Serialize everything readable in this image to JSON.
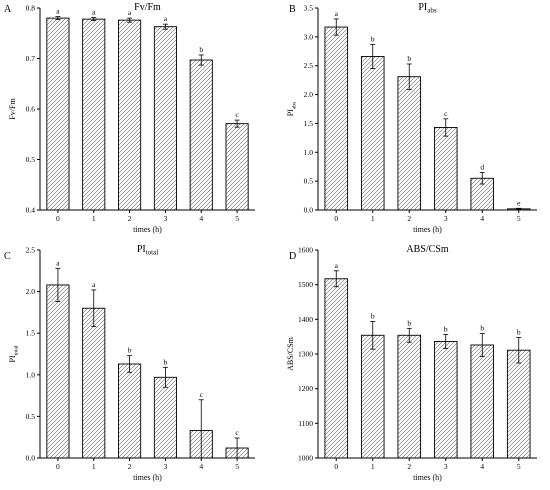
{
  "chart_data": [
    {
      "type": "bar",
      "panel": "A",
      "title": "Fv/Fm",
      "title_sub": "",
      "xlabel": "times (h)",
      "ylabel": "Fv/Fm",
      "ylabel_sub": "",
      "categories": [
        "0",
        "1",
        "2",
        "3",
        "4",
        "5"
      ],
      "values": [
        0.78,
        0.778,
        0.776,
        0.763,
        0.697,
        0.571
      ],
      "errors": [
        0.003,
        0.003,
        0.004,
        0.005,
        0.01,
        0.007
      ],
      "letters": [
        "a",
        "a",
        "a",
        "a",
        "b",
        "c"
      ],
      "ylim": [
        0.4,
        0.8
      ],
      "yticks": [
        "0.4",
        "0.5",
        "0.6",
        "0.7",
        "0.8"
      ],
      "fill": "diagonal-hatch"
    },
    {
      "type": "bar",
      "panel": "B",
      "title": "PI",
      "title_sub": "abs",
      "xlabel": "times (h)",
      "ylabel": "PI",
      "ylabel_sub": "abs",
      "categories": [
        "0",
        "1",
        "2",
        "3",
        "4",
        "5"
      ],
      "values": [
        3.17,
        2.66,
        2.31,
        1.43,
        0.55,
        0.02
      ],
      "errors": [
        0.14,
        0.21,
        0.22,
        0.15,
        0.1,
        0.01
      ],
      "letters": [
        "a",
        "b",
        "b",
        "c",
        "d",
        "e"
      ],
      "ylim": [
        0,
        3.5
      ],
      "yticks": [
        "0.0",
        "0.5",
        "1.0",
        "1.5",
        "2.0",
        "2.5",
        "3.0",
        "3.5"
      ],
      "fill": "diagonal-hatch"
    },
    {
      "type": "bar",
      "panel": "C",
      "title": "PI",
      "title_sub": "total",
      "xlabel": "times (h)",
      "ylabel": "PI",
      "ylabel_sub": "total",
      "categories": [
        "0",
        "1",
        "2",
        "3",
        "4",
        "5"
      ],
      "values": [
        2.08,
        1.8,
        1.13,
        0.97,
        0.33,
        0.12
      ],
      "errors": [
        0.2,
        0.22,
        0.1,
        0.12,
        0.37,
        0.12
      ],
      "letters": [
        "a",
        "a",
        "b",
        "b",
        "c",
        "c"
      ],
      "ylim": [
        0,
        2.5
      ],
      "yticks": [
        "0.0",
        "0.5",
        "1.0",
        "1.5",
        "2.0",
        "2.5"
      ],
      "fill": "diagonal-hatch"
    },
    {
      "type": "bar",
      "panel": "D",
      "title": "ABS/CSm",
      "title_sub": "",
      "xlabel": "times (h)",
      "ylabel": "ABS/CSm",
      "ylabel_sub": "",
      "categories": [
        "0",
        "1",
        "2",
        "3",
        "4",
        "5"
      ],
      "values": [
        1517,
        1354,
        1354,
        1336,
        1326,
        1311
      ],
      "errors": [
        23,
        40,
        20,
        20,
        33,
        37
      ],
      "letters": [
        "a",
        "b",
        "b",
        "b",
        "b",
        "b"
      ],
      "ylim": [
        1000,
        1600
      ],
      "yticks": [
        "1000",
        "1100",
        "1200",
        "1300",
        "1400",
        "1500",
        "1600"
      ],
      "fill": "diagonal-hatch"
    }
  ]
}
